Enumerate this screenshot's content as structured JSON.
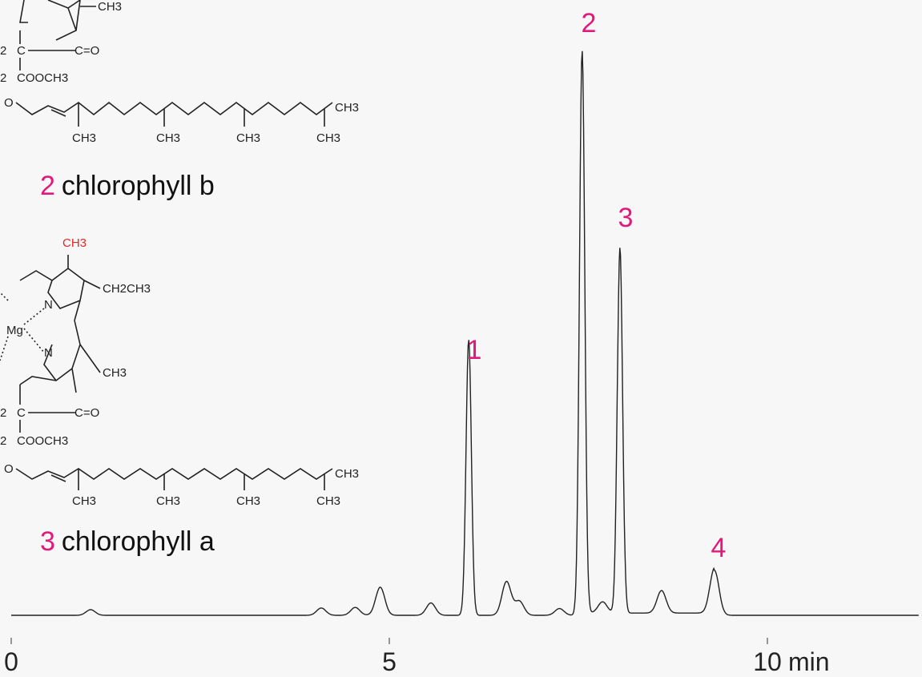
{
  "structures": {
    "b": {
      "number": "2",
      "name": "chlorophyll b"
    },
    "a": {
      "number": "3",
      "name": "chlorophyll a"
    },
    "formula_labels": {
      "ch3": "CH3",
      "c_eq_o": "C=O",
      "c": "C",
      "cooch3": "COOCH3",
      "ch2ch3": "CH2CH3",
      "n": "N",
      "mg": "Mg",
      "o": "O",
      "frag_2": "2"
    },
    "highlight_color": "#e02828"
  },
  "chart_data": {
    "type": "line",
    "xlabel": "min",
    "xlim": [
      0,
      12
    ],
    "xticks": [
      0,
      5,
      10
    ],
    "tick_labels": [
      "0",
      "5",
      "10"
    ],
    "line_color": "#222222",
    "label_color": "#e0197a",
    "peaks": [
      {
        "label": "1",
        "x": 6.05,
        "y": 0.49
      },
      {
        "label": "2",
        "x": 7.55,
        "y": 1.0
      },
      {
        "label": "3",
        "x": 8.05,
        "y": 0.65
      },
      {
        "label": "4",
        "x": 9.3,
        "y": 0.08
      }
    ],
    "minor_peaks": [
      {
        "x": 1.05,
        "y": 0.01
      },
      {
        "x": 4.1,
        "y": 0.013
      },
      {
        "x": 4.55,
        "y": 0.014
      },
      {
        "x": 4.88,
        "y": 0.05
      },
      {
        "x": 5.55,
        "y": 0.022
      },
      {
        "x": 6.55,
        "y": 0.06
      },
      {
        "x": 6.72,
        "y": 0.025
      },
      {
        "x": 7.25,
        "y": 0.012
      },
      {
        "x": 7.82,
        "y": 0.02
      },
      {
        "x": 8.6,
        "y": 0.04
      }
    ]
  }
}
